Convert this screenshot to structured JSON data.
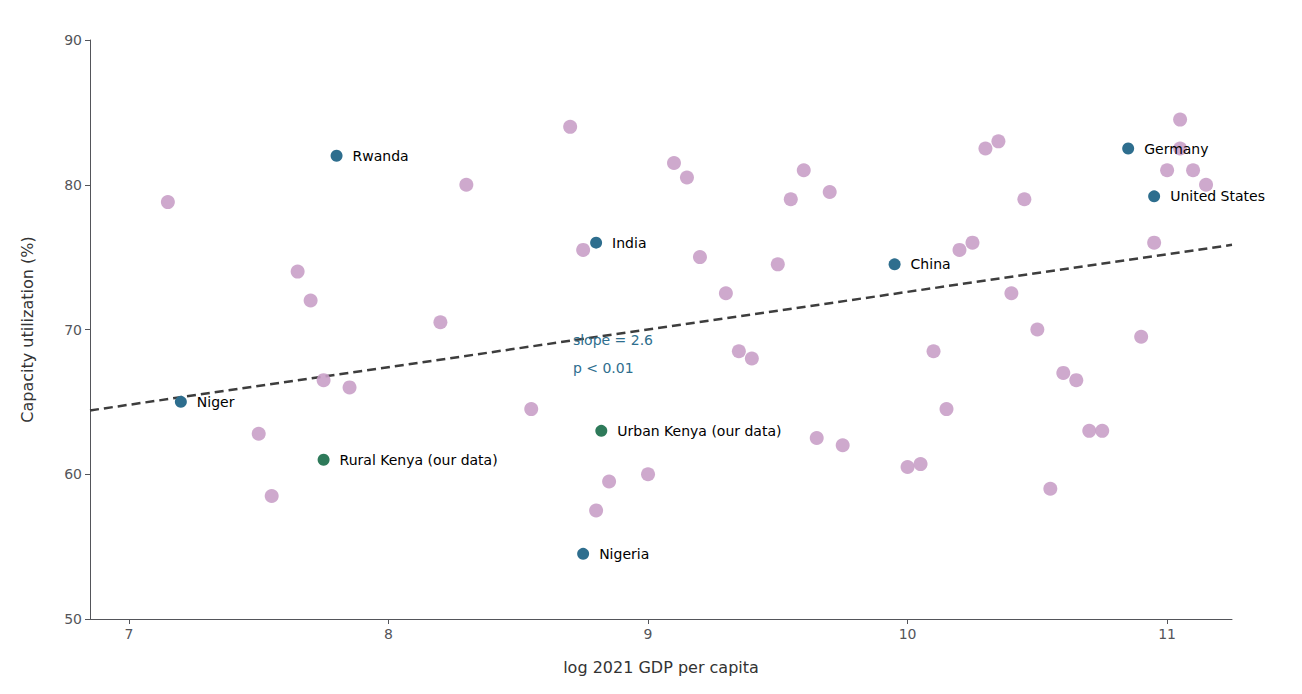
{
  "chart_data": {
    "type": "scatter",
    "xlabel": "log 2021 GDP per capita",
    "ylabel": "Capacity utilization (%)",
    "xlim": [
      6.85,
      11.25
    ],
    "ylim": [
      50,
      90
    ],
    "xticks": [
      7,
      8,
      9,
      10,
      11
    ],
    "yticks": [
      50,
      60,
      70,
      80,
      90
    ],
    "grid": false,
    "series": [
      {
        "type": "scatter",
        "color": "#c9a0c8",
        "x": [
          7.15,
          7.5,
          7.55,
          7.65,
          7.7,
          7.75,
          7.85,
          8.2,
          8.3,
          8.55,
          8.7,
          8.75,
          8.8,
          8.85,
          9.0,
          9.1,
          9.15,
          9.2,
          9.3,
          9.35,
          9.4,
          9.5,
          9.55,
          9.6,
          9.65,
          9.7,
          9.75,
          10.0,
          10.05,
          10.1,
          10.15,
          10.2,
          10.25,
          10.3,
          10.35,
          10.4,
          10.45,
          10.5,
          10.55,
          10.6,
          10.65,
          10.7,
          10.75,
          10.9,
          10.95,
          11.0,
          11.05,
          11.05,
          11.1,
          11.15
        ],
        "values": [
          78.8,
          62.8,
          58.5,
          74.0,
          72.0,
          66.5,
          66.0,
          70.5,
          80.0,
          64.5,
          84.0,
          75.5,
          57.5,
          59.5,
          60.0,
          81.5,
          80.5,
          75.0,
          72.5,
          68.5,
          68.0,
          74.5,
          79.0,
          81.0,
          62.5,
          79.5,
          62.0,
          60.5,
          60.7,
          68.5,
          64.5,
          75.5,
          76.0,
          82.5,
          83.0,
          72.5,
          79.0,
          70.0,
          59.0,
          67.0,
          66.5,
          63.0,
          63.0,
          69.5,
          76.0,
          81.0,
          84.5,
          82.5,
          81.0,
          80.0
        ]
      },
      {
        "type": "scatter",
        "color": "#2e6e8e",
        "x": [
          7.2,
          7.8,
          8.8,
          8.75,
          9.95,
          10.85,
          10.95
        ],
        "values": [
          65.0,
          82.0,
          76.0,
          54.5,
          74.5,
          82.5,
          79.2
        ],
        "labels": [
          "Niger",
          "Rwanda",
          "India",
          "Nigeria",
          "China",
          "Germany",
          "United States"
        ]
      },
      {
        "type": "scatter",
        "color": "#2e7a5a",
        "x": [
          7.75,
          8.82
        ],
        "values": [
          61.0,
          63.0
        ],
        "labels": [
          "Rural Kenya (our data)",
          "Urban Kenya (our data)"
        ]
      },
      {
        "type": "line",
        "line_style": "dashed",
        "color": "#3d3d3d",
        "x": [
          6.85,
          11.25
        ],
        "values": [
          64.41,
          75.85
        ]
      }
    ],
    "annotations": [
      {
        "text": "slope = 2.6",
        "color": "#2e6e8e"
      },
      {
        "text": "p < 0.01",
        "color": "#2e6e8e"
      }
    ]
  }
}
